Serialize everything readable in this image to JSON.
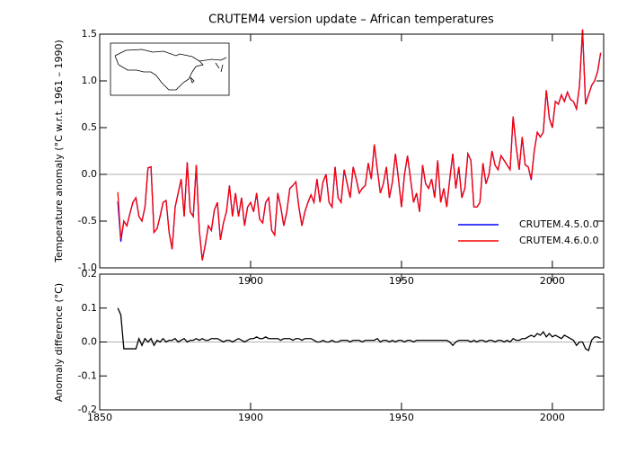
{
  "chart_data": [
    {
      "type": "line",
      "title": "CRUTEM4 version update – African temperatures",
      "y_label": "Temperature anomaly (°C w.r.t. 1961 – 1990)",
      "x": [
        1856,
        1857,
        1858,
        1859,
        1860,
        1861,
        1862,
        1863,
        1864,
        1865,
        1866,
        1867,
        1868,
        1869,
        1870,
        1871,
        1872,
        1873,
        1874,
        1875,
        1876,
        1877,
        1878,
        1879,
        1880,
        1881,
        1882,
        1883,
        1884,
        1885,
        1886,
        1887,
        1888,
        1889,
        1890,
        1891,
        1892,
        1893,
        1894,
        1895,
        1896,
        1897,
        1898,
        1899,
        1900,
        1901,
        1902,
        1903,
        1904,
        1905,
        1906,
        1907,
        1908,
        1909,
        1910,
        1911,
        1912,
        1913,
        1914,
        1915,
        1916,
        1917,
        1918,
        1919,
        1920,
        1921,
        1922,
        1923,
        1924,
        1925,
        1926,
        1927,
        1928,
        1929,
        1930,
        1931,
        1932,
        1933,
        1934,
        1935,
        1936,
        1937,
        1938,
        1939,
        1940,
        1941,
        1942,
        1943,
        1944,
        1945,
        1946,
        1947,
        1948,
        1949,
        1950,
        1951,
        1952,
        1953,
        1954,
        1955,
        1956,
        1957,
        1958,
        1959,
        1960,
        1961,
        1962,
        1963,
        1964,
        1965,
        1966,
        1967,
        1968,
        1969,
        1970,
        1971,
        1972,
        1973,
        1974,
        1975,
        1976,
        1977,
        1978,
        1979,
        1980,
        1981,
        1982,
        1983,
        1984,
        1985,
        1986,
        1987,
        1988,
        1989,
        1990,
        1991,
        1992,
        1993,
        1994,
        1995,
        1996,
        1997,
        1998,
        1999,
        2000,
        2001,
        2002,
        2003,
        2004,
        2005,
        2006,
        2007,
        2008,
        2009,
        2010,
        2011,
        2012,
        2013,
        2014,
        2015,
        2016
      ],
      "series": [
        {
          "name": "CRUTEM.4.5.0.0",
          "color": "#0000ff",
          "values": [
            -0.29,
            -0.72,
            -0.5,
            -0.55,
            -0.42,
            -0.3,
            -0.25,
            -0.45,
            -0.5,
            -0.35,
            0.07,
            0.08,
            -0.62,
            -0.58,
            -0.45,
            -0.3,
            -0.28,
            -0.62,
            -0.8,
            -0.35,
            -0.2,
            -0.05,
            -0.45,
            0.13,
            -0.4,
            -0.45,
            0.1,
            -0.6,
            -0.92,
            -0.75,
            -0.55,
            -0.6,
            -0.38,
            -0.3,
            -0.7,
            -0.52,
            -0.4,
            -0.12,
            -0.45,
            -0.2,
            -0.45,
            -0.25,
            -0.55,
            -0.35,
            -0.3,
            -0.4,
            -0.2,
            -0.48,
            -0.52,
            -0.3,
            -0.25,
            -0.6,
            -0.65,
            -0.2,
            -0.35,
            -0.55,
            -0.4,
            -0.15,
            -0.12,
            -0.08,
            -0.35,
            -0.55,
            -0.4,
            -0.3,
            -0.22,
            -0.3,
            -0.05,
            -0.3,
            -0.08,
            0.0,
            -0.3,
            -0.35,
            0.08,
            -0.25,
            -0.3,
            0.05,
            -0.1,
            -0.25,
            0.08,
            -0.05,
            -0.2,
            -0.15,
            -0.12,
            0.12,
            -0.05,
            0.32,
            0.05,
            -0.2,
            -0.1,
            0.08,
            -0.25,
            -0.08,
            0.22,
            -0.05,
            -0.35,
            0.0,
            0.2,
            -0.05,
            -0.3,
            -0.2,
            -0.4,
            0.1,
            -0.1,
            -0.15,
            -0.05,
            -0.25,
            0.15,
            -0.3,
            -0.15,
            -0.35,
            -0.05,
            0.22,
            -0.15,
            0.08,
            -0.25,
            -0.15,
            0.22,
            0.15,
            -0.35,
            -0.35,
            -0.3,
            0.12,
            -0.1,
            0.0,
            0.25,
            0.1,
            0.05,
            0.2,
            0.15,
            0.1,
            0.05,
            0.62,
            0.3,
            0.05,
            0.4,
            0.1,
            0.08,
            -0.06,
            0.25,
            0.45,
            0.4,
            0.45,
            0.9,
            0.6,
            0.5,
            0.78,
            0.75,
            0.85,
            0.78,
            0.88,
            0.8,
            0.78,
            0.7,
            0.95,
            1.55,
            0.75,
            0.85,
            0.95,
            1.0,
            1.1,
            1.3
          ]
        },
        {
          "name": "CRUTEM.4.6.0.0",
          "color": "#ff0000",
          "values": [
            -0.19,
            -0.69,
            -0.5,
            -0.55,
            -0.42,
            -0.3,
            -0.25,
            -0.45,
            -0.5,
            -0.35,
            0.07,
            0.08,
            -0.62,
            -0.58,
            -0.45,
            -0.3,
            -0.28,
            -0.62,
            -0.8,
            -0.35,
            -0.2,
            -0.05,
            -0.45,
            0.13,
            -0.4,
            -0.45,
            0.1,
            -0.6,
            -0.92,
            -0.75,
            -0.55,
            -0.6,
            -0.38,
            -0.3,
            -0.7,
            -0.52,
            -0.4,
            -0.12,
            -0.45,
            -0.2,
            -0.45,
            -0.25,
            -0.55,
            -0.35,
            -0.3,
            -0.4,
            -0.2,
            -0.48,
            -0.52,
            -0.3,
            -0.25,
            -0.6,
            -0.65,
            -0.2,
            -0.35,
            -0.55,
            -0.4,
            -0.15,
            -0.12,
            -0.08,
            -0.35,
            -0.55,
            -0.4,
            -0.3,
            -0.22,
            -0.3,
            -0.05,
            -0.3,
            -0.08,
            0.0,
            -0.3,
            -0.35,
            0.08,
            -0.25,
            -0.3,
            0.05,
            -0.1,
            -0.25,
            0.08,
            -0.05,
            -0.2,
            -0.15,
            -0.12,
            0.12,
            -0.05,
            0.32,
            0.05,
            -0.2,
            -0.1,
            0.08,
            -0.25,
            -0.08,
            0.22,
            -0.05,
            -0.35,
            0.0,
            0.2,
            -0.05,
            -0.3,
            -0.2,
            -0.4,
            0.1,
            -0.1,
            -0.15,
            -0.05,
            -0.25,
            0.15,
            -0.3,
            -0.15,
            -0.35,
            -0.05,
            0.22,
            -0.15,
            0.08,
            -0.25,
            -0.15,
            0.22,
            0.15,
            -0.35,
            -0.35,
            -0.3,
            0.12,
            -0.1,
            0.0,
            0.25,
            0.1,
            0.05,
            0.2,
            0.15,
            0.1,
            0.05,
            0.62,
            0.3,
            0.05,
            0.4,
            0.1,
            0.08,
            -0.05,
            0.25,
            0.45,
            0.4,
            0.45,
            0.9,
            0.6,
            0.5,
            0.78,
            0.75,
            0.85,
            0.78,
            0.88,
            0.8,
            0.78,
            0.7,
            0.95,
            1.55,
            0.75,
            0.85,
            0.95,
            1.0,
            1.1,
            1.3
          ]
        }
      ],
      "xlim": [
        1850,
        2017
      ],
      "xticks": [
        1900,
        1950,
        2000
      ],
      "ylim": [
        -1.0,
        1.5
      ],
      "yticks": [
        1.5,
        {
          "value": 1.0,
          "label": "1.0"
        },
        0.5,
        {
          "value": 0.0,
          "label": "0.0"
        },
        -0.5,
        {
          "value": -1.0,
          "label": "-1.0"
        }
      ],
      "legend": "lower right"
    },
    {
      "type": "line",
      "y_label": "Anomaly difference (°C)",
      "x": [
        1856,
        1857,
        1858,
        1859,
        1860,
        1861,
        1862,
        1863,
        1864,
        1865,
        1866,
        1867,
        1868,
        1869,
        1870,
        1871,
        1872,
        1873,
        1874,
        1875,
        1876,
        1877,
        1878,
        1879,
        1880,
        1881,
        1882,
        1883,
        1884,
        1885,
        1886,
        1887,
        1888,
        1889,
        1890,
        1891,
        1892,
        1893,
        1894,
        1895,
        1896,
        1897,
        1898,
        1899,
        1900,
        1901,
        1902,
        1903,
        1904,
        1905,
        1906,
        1907,
        1908,
        1909,
        1910,
        1911,
        1912,
        1913,
        1914,
        1915,
        1916,
        1917,
        1918,
        1919,
        1920,
        1921,
        1922,
        1923,
        1924,
        1925,
        1926,
        1927,
        1928,
        1929,
        1930,
        1931,
        1932,
        1933,
        1934,
        1935,
        1936,
        1937,
        1938,
        1939,
        1940,
        1941,
        1942,
        1943,
        1944,
        1945,
        1946,
        1947,
        1948,
        1949,
        1950,
        1951,
        1952,
        1953,
        1954,
        1955,
        1956,
        1957,
        1958,
        1959,
        1960,
        1961,
        1962,
        1963,
        1964,
        1965,
        1966,
        1967,
        1968,
        1969,
        1970,
        1971,
        1972,
        1973,
        1974,
        1975,
        1976,
        1977,
        1978,
        1979,
        1980,
        1981,
        1982,
        1983,
        1984,
        1985,
        1986,
        1987,
        1988,
        1989,
        1990,
        1991,
        1992,
        1993,
        1994,
        1995,
        1996,
        1997,
        1998,
        1999,
        2000,
        2001,
        2002,
        2003,
        2004,
        2005,
        2006,
        2007,
        2008,
        2009,
        2010,
        2011,
        2012,
        2013,
        2014,
        2015,
        2016
      ],
      "color": "#000000",
      "values": [
        0.1,
        0.08,
        -0.02,
        -0.02,
        -0.02,
        -0.02,
        -0.02,
        0.01,
        -0.01,
        0.01,
        0.0,
        0.01,
        -0.01,
        0.005,
        0.0,
        0.01,
        0.0,
        0.005,
        0.005,
        0.01,
        0.0,
        0.005,
        0.01,
        0.0,
        0.005,
        0.005,
        0.01,
        0.005,
        0.01,
        0.005,
        0.005,
        0.01,
        0.01,
        0.01,
        0.005,
        0.0,
        0.005,
        0.005,
        0.0,
        0.005,
        0.01,
        0.005,
        0.0,
        0.005,
        0.01,
        0.01,
        0.015,
        0.01,
        0.01,
        0.015,
        0.01,
        0.01,
        0.01,
        0.01,
        0.005,
        0.01,
        0.01,
        0.01,
        0.005,
        0.01,
        0.01,
        0.005,
        0.01,
        0.01,
        0.01,
        0.005,
        0.0,
        0.0,
        0.005,
        0.0,
        0.0,
        0.005,
        0.0,
        0.0,
        0.005,
        0.005,
        0.005,
        0.0,
        0.005,
        0.005,
        0.005,
        0.0,
        0.005,
        0.005,
        0.005,
        0.005,
        0.01,
        0.0,
        0.005,
        0.005,
        0.0,
        0.005,
        0.0,
        0.005,
        0.005,
        0.0,
        0.005,
        0.005,
        0.0,
        0.005,
        0.005,
        0.005,
        0.005,
        0.005,
        0.005,
        0.005,
        0.005,
        0.005,
        0.005,
        0.005,
        0.0,
        -0.01,
        0.0,
        0.005,
        0.005,
        0.005,
        0.005,
        0.0,
        0.005,
        0.0,
        0.005,
        0.005,
        0.0,
        0.005,
        0.005,
        0.0,
        0.005,
        0.005,
        0.0,
        0.005,
        0.0,
        0.01,
        0.005,
        0.005,
        0.01,
        0.01,
        0.015,
        0.02,
        0.015,
        0.025,
        0.02,
        0.03,
        0.015,
        0.025,
        0.015,
        0.02,
        0.015,
        0.01,
        0.02,
        0.015,
        0.01,
        0.005,
        -0.01,
        0.0,
        0.0,
        -0.02,
        -0.025,
        0.005,
        0.015,
        0.015,
        0.01
      ],
      "xlim": [
        1850,
        2017
      ],
      "xticks": [
        1850,
        1900,
        1950,
        2000
      ],
      "ylim": [
        -0.2,
        0.2
      ],
      "yticks": [
        0.2,
        0.1,
        {
          "value": 0.0,
          "label": "0.0"
        },
        -0.1,
        -0.2
      ]
    }
  ]
}
